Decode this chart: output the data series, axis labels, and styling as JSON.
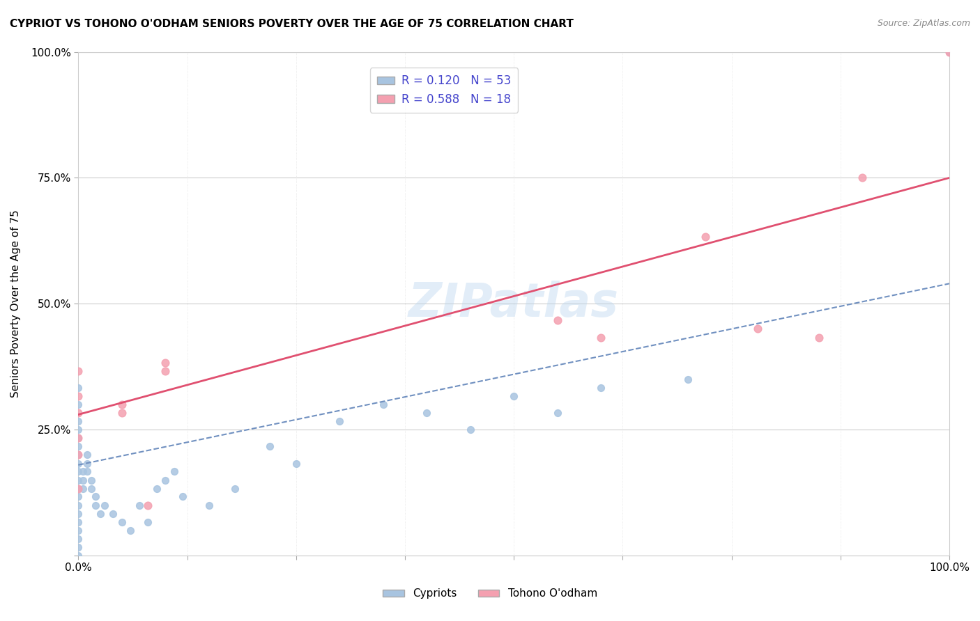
{
  "title": "CYPRIOT VS TOHONO O'ODHAM SENIORS POVERTY OVER THE AGE OF 75 CORRELATION CHART",
  "source": "Source: ZipAtlas.com",
  "ylabel": "Seniors Poverty Over the Age of 75",
  "xlabel": "",
  "xlim": [
    0,
    1.0
  ],
  "ylim": [
    0,
    1.0
  ],
  "xticks": [
    0.0,
    0.125,
    0.25,
    0.375,
    0.5,
    0.625,
    0.75,
    0.875,
    1.0
  ],
  "yticks": [
    0.0,
    0.25,
    0.5,
    0.75,
    1.0
  ],
  "ytick_labels": [
    "",
    "25.0%",
    "50.0%",
    "75.0%",
    "100.0%"
  ],
  "xtick_labels": [
    "0.0%",
    "",
    "",
    "",
    "",
    "",
    "",
    "",
    "100.0%"
  ],
  "watermark": "ZIPatlas",
  "blue_R": 0.12,
  "blue_N": 53,
  "pink_R": 0.588,
  "pink_N": 18,
  "blue_color": "#a8c4e0",
  "pink_color": "#f4a0b0",
  "blue_line_color": "#7090c0",
  "pink_line_color": "#e05070",
  "blue_scatter": [
    [
      0.0,
      0.333
    ],
    [
      0.0,
      0.3
    ],
    [
      0.0,
      0.267
    ],
    [
      0.0,
      0.25
    ],
    [
      0.0,
      0.233
    ],
    [
      0.0,
      0.217
    ],
    [
      0.0,
      0.2
    ],
    [
      0.0,
      0.183
    ],
    [
      0.0,
      0.167
    ],
    [
      0.0,
      0.15
    ],
    [
      0.0,
      0.133
    ],
    [
      0.0,
      0.117
    ],
    [
      0.0,
      0.1
    ],
    [
      0.0,
      0.083
    ],
    [
      0.0,
      0.067
    ],
    [
      0.0,
      0.05
    ],
    [
      0.0,
      0.033
    ],
    [
      0.0,
      0.017
    ],
    [
      0.0,
      0.0
    ],
    [
      0.005,
      0.167
    ],
    [
      0.005,
      0.15
    ],
    [
      0.005,
      0.133
    ],
    [
      0.01,
      0.2
    ],
    [
      0.01,
      0.183
    ],
    [
      0.01,
      0.167
    ],
    [
      0.015,
      0.15
    ],
    [
      0.015,
      0.133
    ],
    [
      0.02,
      0.117
    ],
    [
      0.02,
      0.1
    ],
    [
      0.025,
      0.083
    ],
    [
      0.03,
      0.1
    ],
    [
      0.04,
      0.083
    ],
    [
      0.05,
      0.067
    ],
    [
      0.06,
      0.05
    ],
    [
      0.07,
      0.1
    ],
    [
      0.08,
      0.067
    ],
    [
      0.09,
      0.133
    ],
    [
      0.1,
      0.15
    ],
    [
      0.11,
      0.167
    ],
    [
      0.12,
      0.117
    ],
    [
      0.15,
      0.1
    ],
    [
      0.18,
      0.133
    ],
    [
      0.22,
      0.217
    ],
    [
      0.25,
      0.183
    ],
    [
      0.3,
      0.267
    ],
    [
      0.35,
      0.3
    ],
    [
      0.4,
      0.283
    ],
    [
      0.45,
      0.25
    ],
    [
      0.5,
      0.317
    ],
    [
      0.55,
      0.283
    ],
    [
      0.6,
      0.333
    ],
    [
      0.7,
      0.35
    ],
    [
      1.0,
      1.0
    ]
  ],
  "pink_scatter": [
    [
      0.0,
      0.367
    ],
    [
      0.0,
      0.317
    ],
    [
      0.0,
      0.283
    ],
    [
      0.0,
      0.233
    ],
    [
      0.0,
      0.2
    ],
    [
      0.0,
      0.133
    ],
    [
      0.05,
      0.3
    ],
    [
      0.05,
      0.283
    ],
    [
      0.08,
      0.1
    ],
    [
      0.1,
      0.383
    ],
    [
      0.1,
      0.367
    ],
    [
      0.55,
      0.467
    ],
    [
      0.6,
      0.433
    ],
    [
      0.72,
      0.633
    ],
    [
      0.78,
      0.45
    ],
    [
      0.85,
      0.433
    ],
    [
      0.9,
      0.75
    ],
    [
      1.0,
      1.0
    ]
  ],
  "blue_trendline": [
    [
      0.0,
      0.18
    ],
    [
      1.0,
      0.54
    ]
  ],
  "pink_trendline": [
    [
      0.0,
      0.28
    ],
    [
      1.0,
      0.75
    ]
  ]
}
